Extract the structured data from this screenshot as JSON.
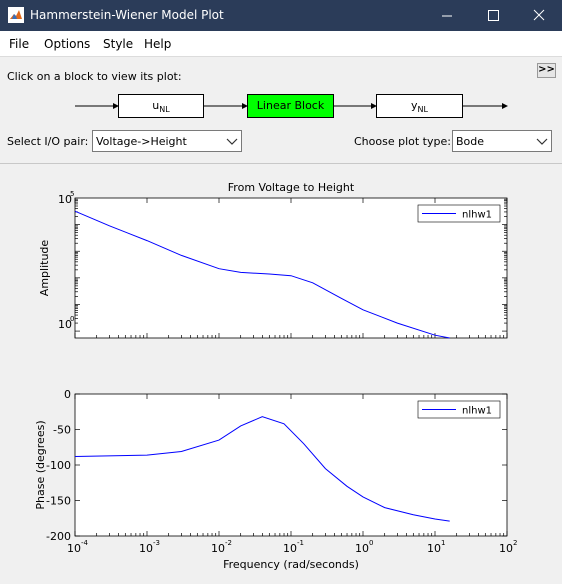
{
  "window": {
    "title": "Hammerstein-Wiener Model Plot",
    "controls": {
      "minimize": "minimize",
      "maximize": "maximize",
      "close": "close"
    }
  },
  "menu": [
    "File",
    "Options",
    "Style",
    "Help"
  ],
  "panel": {
    "hint": "Click on a block to view its plot:",
    "expand_label": ">>",
    "blocks": {
      "input_main": "u",
      "input_sub": "NL",
      "linear": "Linear Block",
      "output_main": "y",
      "output_sub": "NL"
    },
    "io_label": "Select I/O pair:",
    "io_value": "Voltage->Height",
    "plot_type_label": "Choose plot type:",
    "plot_type_value": "Bode"
  },
  "plot": {
    "title": "From Voltage to Height",
    "xlabel": "Frequency (rad/seconds)",
    "amp_ylabel": "Amplitude",
    "phase_ylabel": "Phase (degrees)",
    "amp_ytick_top": "5",
    "amp_ytick_bottom": "0",
    "amp_ytick_base": "10",
    "phase_yticks": [
      "0",
      "-50",
      "-100",
      "-150",
      "-200"
    ],
    "xtick_base": "10",
    "xtick_exps": [
      "-4",
      "-3",
      "-2",
      "-1",
      "0",
      "1",
      "2"
    ],
    "legend": "nlhw1",
    "line_color": "#0000ff"
  },
  "chart_data": [
    {
      "type": "line",
      "title": "From Voltage to Height",
      "xlabel": "",
      "ylabel": "Amplitude",
      "xscale": "log",
      "yscale": "log",
      "xlim": [
        0.0001,
        100
      ],
      "ylim": [
        0.55,
        100000
      ],
      "series": [
        {
          "name": "nlhw1",
          "x": [
            0.0001,
            0.0003,
            0.001,
            0.003,
            0.01,
            0.02,
            0.05,
            0.1,
            0.2,
            0.5,
            1,
            3,
            10,
            16
          ],
          "y": [
            32000,
            9000,
            2500,
            700,
            220,
            160,
            140,
            120,
            65,
            17,
            6.3,
            2,
            0.7,
            0.55
          ]
        }
      ],
      "legend_position": "top-right",
      "grid": false
    },
    {
      "type": "line",
      "xlabel": "Frequency (rad/seconds)",
      "ylabel": "Phase (degrees)",
      "xscale": "log",
      "xlim": [
        0.0001,
        100
      ],
      "ylim": [
        -200,
        0
      ],
      "series": [
        {
          "name": "nlhw1",
          "x": [
            0.0001,
            0.001,
            0.003,
            0.01,
            0.02,
            0.04,
            0.08,
            0.15,
            0.3,
            0.6,
            1,
            2,
            5,
            10,
            16
          ],
          "y": [
            -88,
            -86,
            -81,
            -65,
            -45,
            -32,
            -42,
            -70,
            -105,
            -130,
            -145,
            -160,
            -170,
            -176,
            -179
          ]
        }
      ],
      "legend_position": "top-right",
      "grid": false
    }
  ]
}
